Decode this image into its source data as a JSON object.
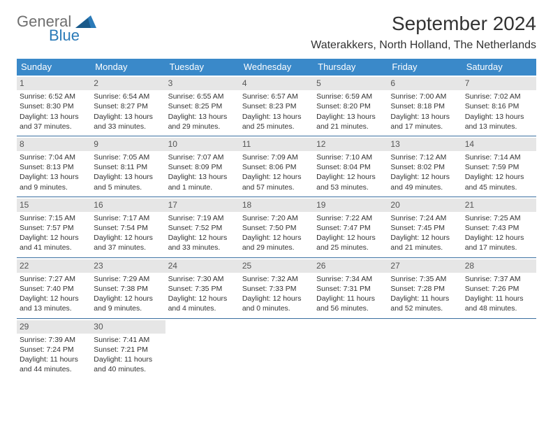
{
  "logo": {
    "general": "General",
    "blue": "Blue"
  },
  "title": "September 2024",
  "location": "Waterakkers, North Holland, The Netherlands",
  "colors": {
    "header_bg": "#3a89c9",
    "header_text": "#ffffff",
    "daynum_bg": "#e6e6e6",
    "border": "#3a6fa0",
    "logo_gray": "#6f6f6f",
    "logo_blue": "#2a7ab8"
  },
  "day_names": [
    "Sunday",
    "Monday",
    "Tuesday",
    "Wednesday",
    "Thursday",
    "Friday",
    "Saturday"
  ],
  "weeks": [
    [
      {
        "num": "1",
        "sunrise": "Sunrise: 6:52 AM",
        "sunset": "Sunset: 8:30 PM",
        "daylight": "Daylight: 13 hours and 37 minutes."
      },
      {
        "num": "2",
        "sunrise": "Sunrise: 6:54 AM",
        "sunset": "Sunset: 8:27 PM",
        "daylight": "Daylight: 13 hours and 33 minutes."
      },
      {
        "num": "3",
        "sunrise": "Sunrise: 6:55 AM",
        "sunset": "Sunset: 8:25 PM",
        "daylight": "Daylight: 13 hours and 29 minutes."
      },
      {
        "num": "4",
        "sunrise": "Sunrise: 6:57 AM",
        "sunset": "Sunset: 8:23 PM",
        "daylight": "Daylight: 13 hours and 25 minutes."
      },
      {
        "num": "5",
        "sunrise": "Sunrise: 6:59 AM",
        "sunset": "Sunset: 8:20 PM",
        "daylight": "Daylight: 13 hours and 21 minutes."
      },
      {
        "num": "6",
        "sunrise": "Sunrise: 7:00 AM",
        "sunset": "Sunset: 8:18 PM",
        "daylight": "Daylight: 13 hours and 17 minutes."
      },
      {
        "num": "7",
        "sunrise": "Sunrise: 7:02 AM",
        "sunset": "Sunset: 8:16 PM",
        "daylight": "Daylight: 13 hours and 13 minutes."
      }
    ],
    [
      {
        "num": "8",
        "sunrise": "Sunrise: 7:04 AM",
        "sunset": "Sunset: 8:13 PM",
        "daylight": "Daylight: 13 hours and 9 minutes."
      },
      {
        "num": "9",
        "sunrise": "Sunrise: 7:05 AM",
        "sunset": "Sunset: 8:11 PM",
        "daylight": "Daylight: 13 hours and 5 minutes."
      },
      {
        "num": "10",
        "sunrise": "Sunrise: 7:07 AM",
        "sunset": "Sunset: 8:09 PM",
        "daylight": "Daylight: 13 hours and 1 minute."
      },
      {
        "num": "11",
        "sunrise": "Sunrise: 7:09 AM",
        "sunset": "Sunset: 8:06 PM",
        "daylight": "Daylight: 12 hours and 57 minutes."
      },
      {
        "num": "12",
        "sunrise": "Sunrise: 7:10 AM",
        "sunset": "Sunset: 8:04 PM",
        "daylight": "Daylight: 12 hours and 53 minutes."
      },
      {
        "num": "13",
        "sunrise": "Sunrise: 7:12 AM",
        "sunset": "Sunset: 8:02 PM",
        "daylight": "Daylight: 12 hours and 49 minutes."
      },
      {
        "num": "14",
        "sunrise": "Sunrise: 7:14 AM",
        "sunset": "Sunset: 7:59 PM",
        "daylight": "Daylight: 12 hours and 45 minutes."
      }
    ],
    [
      {
        "num": "15",
        "sunrise": "Sunrise: 7:15 AM",
        "sunset": "Sunset: 7:57 PM",
        "daylight": "Daylight: 12 hours and 41 minutes."
      },
      {
        "num": "16",
        "sunrise": "Sunrise: 7:17 AM",
        "sunset": "Sunset: 7:54 PM",
        "daylight": "Daylight: 12 hours and 37 minutes."
      },
      {
        "num": "17",
        "sunrise": "Sunrise: 7:19 AM",
        "sunset": "Sunset: 7:52 PM",
        "daylight": "Daylight: 12 hours and 33 minutes."
      },
      {
        "num": "18",
        "sunrise": "Sunrise: 7:20 AM",
        "sunset": "Sunset: 7:50 PM",
        "daylight": "Daylight: 12 hours and 29 minutes."
      },
      {
        "num": "19",
        "sunrise": "Sunrise: 7:22 AM",
        "sunset": "Sunset: 7:47 PM",
        "daylight": "Daylight: 12 hours and 25 minutes."
      },
      {
        "num": "20",
        "sunrise": "Sunrise: 7:24 AM",
        "sunset": "Sunset: 7:45 PM",
        "daylight": "Daylight: 12 hours and 21 minutes."
      },
      {
        "num": "21",
        "sunrise": "Sunrise: 7:25 AM",
        "sunset": "Sunset: 7:43 PM",
        "daylight": "Daylight: 12 hours and 17 minutes."
      }
    ],
    [
      {
        "num": "22",
        "sunrise": "Sunrise: 7:27 AM",
        "sunset": "Sunset: 7:40 PM",
        "daylight": "Daylight: 12 hours and 13 minutes."
      },
      {
        "num": "23",
        "sunrise": "Sunrise: 7:29 AM",
        "sunset": "Sunset: 7:38 PM",
        "daylight": "Daylight: 12 hours and 9 minutes."
      },
      {
        "num": "24",
        "sunrise": "Sunrise: 7:30 AM",
        "sunset": "Sunset: 7:35 PM",
        "daylight": "Daylight: 12 hours and 4 minutes."
      },
      {
        "num": "25",
        "sunrise": "Sunrise: 7:32 AM",
        "sunset": "Sunset: 7:33 PM",
        "daylight": "Daylight: 12 hours and 0 minutes."
      },
      {
        "num": "26",
        "sunrise": "Sunrise: 7:34 AM",
        "sunset": "Sunset: 7:31 PM",
        "daylight": "Daylight: 11 hours and 56 minutes."
      },
      {
        "num": "27",
        "sunrise": "Sunrise: 7:35 AM",
        "sunset": "Sunset: 7:28 PM",
        "daylight": "Daylight: 11 hours and 52 minutes."
      },
      {
        "num": "28",
        "sunrise": "Sunrise: 7:37 AM",
        "sunset": "Sunset: 7:26 PM",
        "daylight": "Daylight: 11 hours and 48 minutes."
      }
    ],
    [
      {
        "num": "29",
        "sunrise": "Sunrise: 7:39 AM",
        "sunset": "Sunset: 7:24 PM",
        "daylight": "Daylight: 11 hours and 44 minutes."
      },
      {
        "num": "30",
        "sunrise": "Sunrise: 7:41 AM",
        "sunset": "Sunset: 7:21 PM",
        "daylight": "Daylight: 11 hours and 40 minutes."
      },
      null,
      null,
      null,
      null,
      null
    ]
  ]
}
